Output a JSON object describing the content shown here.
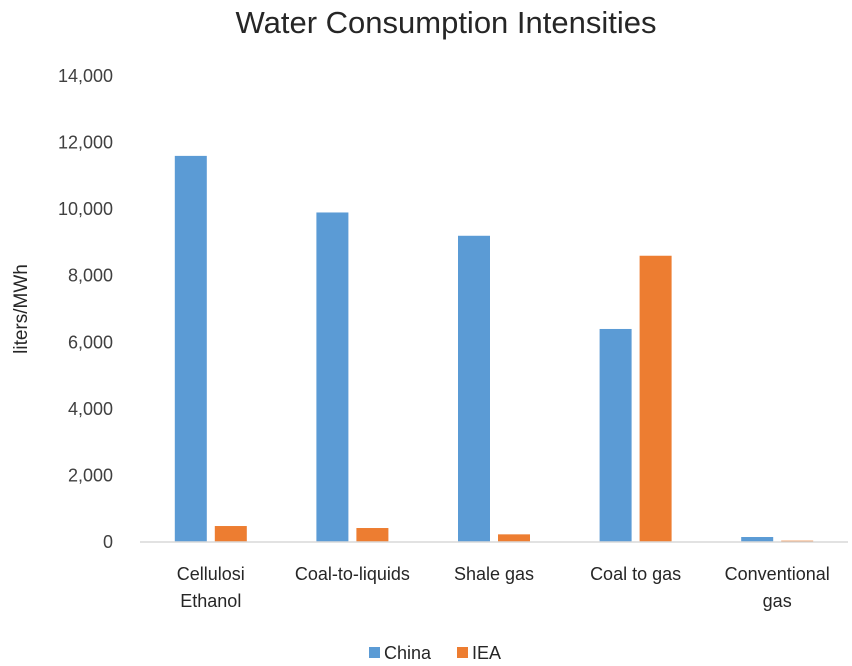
{
  "chart_data": {
    "type": "bar",
    "title": "Water Consumption Intensities",
    "xlabel": "",
    "ylabel": "liters/MWh",
    "ylim": [
      0,
      14000
    ],
    "yticks": [
      "0",
      "2,000",
      "4,000",
      "6,000",
      "8,000",
      "10,000",
      "12,000",
      "14,000"
    ],
    "categories": [
      [
        "Cellulosi",
        "Ethanol"
      ],
      [
        "Coal-to-liquids"
      ],
      [
        "Shale gas"
      ],
      [
        "Coal to gas"
      ],
      [
        "Conventional",
        "gas"
      ]
    ],
    "series": [
      {
        "name": "China",
        "color": "#5B9BD5",
        "values": [
          11600,
          9900,
          9200,
          6400,
          150
        ]
      },
      {
        "name": "IEA",
        "color": "#ED7D31",
        "values": [
          480,
          420,
          230,
          8600,
          40
        ]
      }
    ],
    "grid": false,
    "legend_position": "bottom"
  }
}
